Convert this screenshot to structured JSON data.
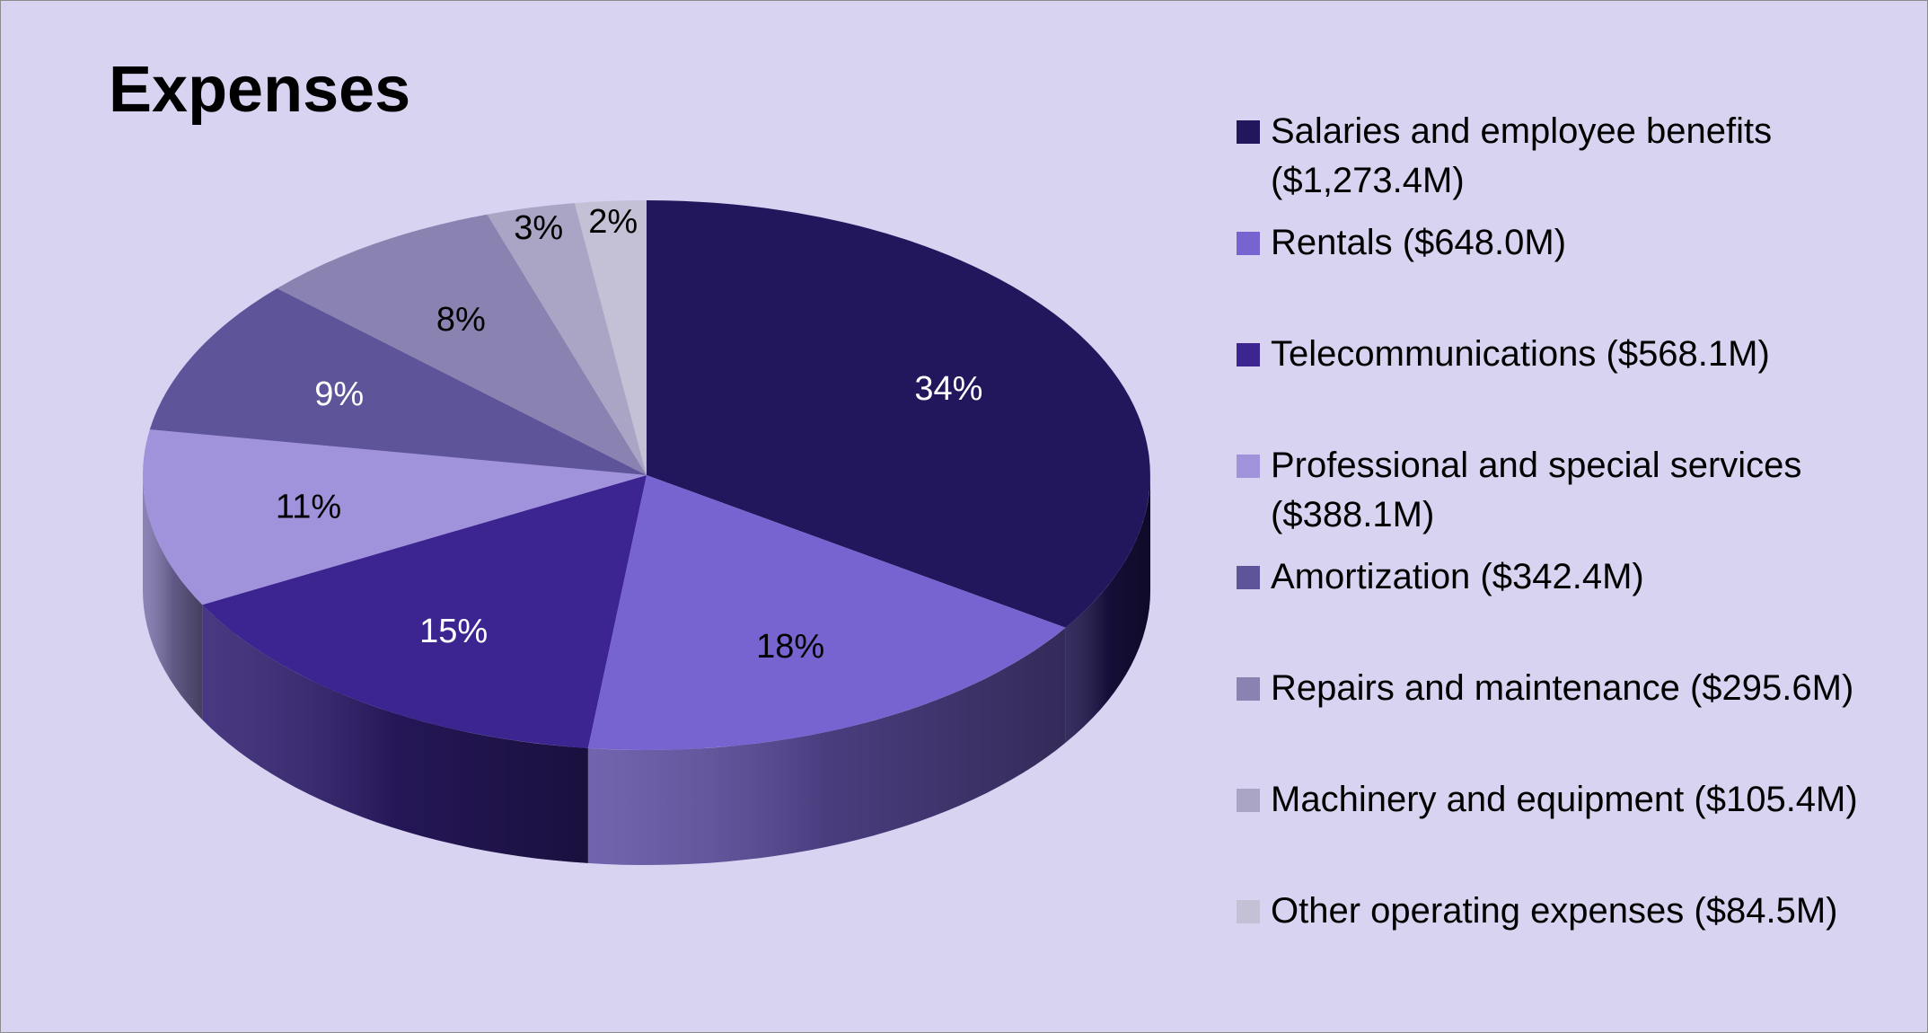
{
  "colors": {
    "background": "#d9d3f2",
    "label_light": "#ffffff",
    "label_dark": "#000000"
  },
  "chart_data": {
    "type": "pie",
    "title": "Expenses",
    "legend_position": "right",
    "unit": "$M",
    "slices": [
      {
        "name": "Salaries and employee benefits",
        "legend": "Salaries and employee benefits ($1,273.4M)",
        "value": 1273.4,
        "percent_label": "34%",
        "color": "#22175c",
        "label_color": "#ffffff"
      },
      {
        "name": "Rentals",
        "legend": "Rentals ($648.0M)",
        "value": 648.0,
        "percent_label": "18%",
        "color": "#7864d0",
        "label_color": "#000000"
      },
      {
        "name": "Telecommunications",
        "legend": "Telecommunications ($568.1M)",
        "value": 568.1,
        "percent_label": "15%",
        "color": "#3c2590",
        "label_color": "#ffffff"
      },
      {
        "name": "Professional and special services",
        "legend": "Professional and special services ($388.1M)",
        "value": 388.1,
        "percent_label": "11%",
        "color": "#a093dc",
        "label_color": "#000000"
      },
      {
        "name": "Amortization",
        "legend": "Amortization ($342.4M)",
        "value": 342.4,
        "percent_label": "9%",
        "color": "#5e5499",
        "label_color": "#ffffff"
      },
      {
        "name": "Repairs and maintenance",
        "legend": "Repairs and maintenance ($295.6M)",
        "value": 295.6,
        "percent_label": "8%",
        "color": "#8a82b0",
        "label_color": "#000000"
      },
      {
        "name": "Machinery and equipment",
        "legend": "Machinery and equipment ($105.4M)",
        "value": 105.4,
        "percent_label": "3%",
        "color": "#aaa5c4",
        "label_color": "#000000"
      },
      {
        "name": "Other operating expenses",
        "legend": "Other operating expenses ($84.5M)",
        "value": 84.5,
        "percent_label": "2%",
        "color": "#c4c0d6",
        "label_color": "#000000"
      }
    ]
  }
}
